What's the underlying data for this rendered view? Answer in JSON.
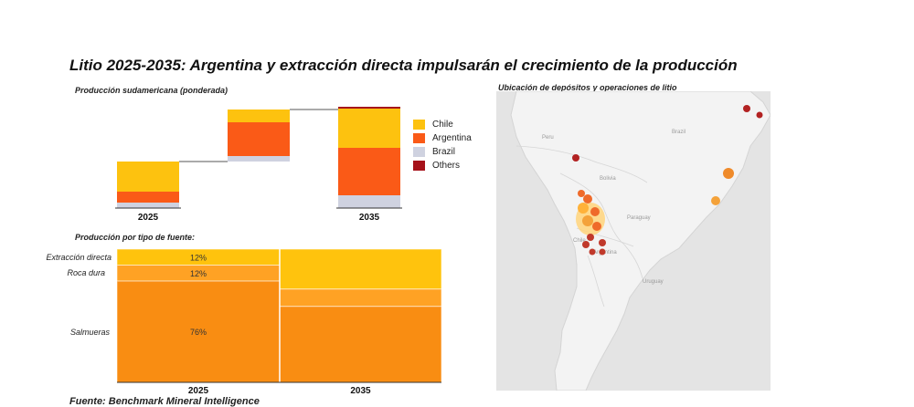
{
  "title": "Litio 2025-2035: Argentina y extracción directa impulsarán el crecimiento de la producción",
  "footer": "Fuente: Benchmark Mineral Intelligence",
  "colors": {
    "chile": "#fdc20f",
    "argentina": "#fa5a17",
    "brazil": "#cfd2e0",
    "others": "#a6121a",
    "extraccion": "#ffc30d",
    "roca": "#ffa224",
    "salmueras": "#f98d12",
    "map_land": "#f2f2f2",
    "map_sea": "#e3e3e3"
  },
  "chart_data": [
    {
      "type": "bar",
      "subtitle": "Producción sudamericana (ponderada)",
      "categories": [
        "2025",
        "",
        "2035"
      ],
      "series": [
        {
          "name": "Brazil",
          "values": [
            6,
            6,
            14
          ]
        },
        {
          "name": "Argentina",
          "values": [
            12,
            37,
            52
          ]
        },
        {
          "name": "Chile",
          "values": [
            33,
            14,
            43
          ]
        },
        {
          "name": "Others",
          "values": [
            0,
            0,
            2
          ]
        }
      ],
      "ylim": [
        0,
        111
      ],
      "legend": [
        "Chile",
        "Argentina",
        "Brazil",
        "Others"
      ]
    },
    {
      "type": "bar",
      "subtitle": "Producción por tipo de fuente:",
      "categories": [
        "2025",
        "2035"
      ],
      "row_labels": [
        "Extracción directa",
        "Roca dura",
        "Salmueras"
      ],
      "series": [
        {
          "name": "Extracción directa",
          "values": [
            12,
            30
          ]
        },
        {
          "name": "Roca dura",
          "values": [
            12,
            13
          ]
        },
        {
          "name": "Salmueras",
          "values": [
            76,
            57
          ]
        }
      ],
      "data_labels_2025": [
        "12%",
        "12%",
        "76%"
      ]
    }
  ],
  "map": {
    "subtitle": "Ubicación de depósitos y operaciones de litio",
    "countries": [
      "Brazil",
      "Peru",
      "Bolivia",
      "Paraguay",
      "Chile",
      "Argentina",
      "Uruguay"
    ]
  }
}
